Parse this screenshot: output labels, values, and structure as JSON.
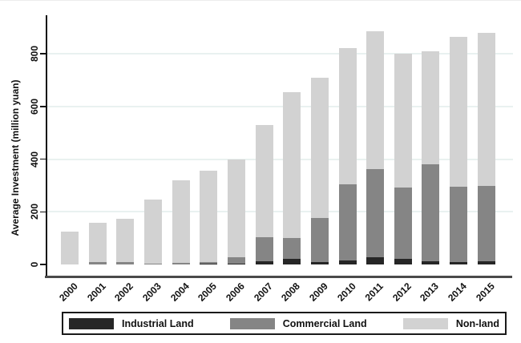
{
  "figure": {
    "background": "#ffffff"
  },
  "chart_data": {
    "type": "bar",
    "stacked": true,
    "title": "",
    "xlabel": "",
    "ylabel": "Average Investment (million yuan)",
    "ylim": [
      0,
      945
    ],
    "yticks": [
      0,
      200,
      400,
      600,
      800
    ],
    "gridline_values": [
      200,
      400,
      600,
      800
    ],
    "grid": true,
    "legend_position": "bottom",
    "categories": [
      "2000",
      "2001",
      "2002",
      "2003",
      "2004",
      "2005",
      "2006",
      "2007",
      "2008",
      "2009",
      "2010",
      "2011",
      "2012",
      "2013",
      "2014",
      "2015"
    ],
    "series": [
      {
        "name": "Industrial Land",
        "color": "#262626",
        "values": [
          0,
          0,
          0,
          0,
          0,
          2,
          4,
          12,
          20,
          9,
          14,
          26,
          21,
          12,
          9,
          12
        ]
      },
      {
        "name": "Commercial Land",
        "color": "#858585",
        "values": [
          0,
          8,
          9,
          3,
          5,
          7,
          24,
          91,
          80,
          166,
          291,
          336,
          270,
          368,
          286,
          286
        ]
      },
      {
        "name": "Non-land",
        "color": "#d2d2d2",
        "values": [
          125,
          150,
          163,
          242,
          315,
          346,
          372,
          427,
          555,
          535,
          515,
          523,
          509,
          428,
          570,
          582
        ]
      }
    ],
    "totals": [
      125,
      158,
      172,
      245,
      320,
      355,
      400,
      530,
      655,
      710,
      820,
      885,
      800,
      808,
      865,
      880
    ]
  },
  "colors": {
    "gridline": "#e9f1f0",
    "y_axis": "#111111",
    "x_axis": "#4a4a4a",
    "legend_border": "#1a1a1a",
    "text": "#111111"
  }
}
